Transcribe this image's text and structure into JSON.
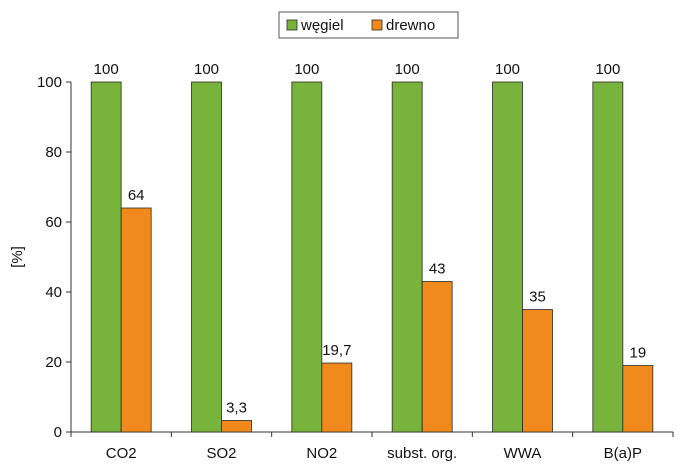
{
  "chart_data": {
    "type": "bar",
    "categories": [
      "CO2",
      "SO2",
      "NO2",
      "subst. org.",
      "WWA",
      "B(a)P"
    ],
    "series": [
      {
        "name": "węgiel",
        "color": "#78b33b",
        "values": [
          100,
          100,
          100,
          100,
          100,
          100
        ],
        "labels": [
          "100",
          "100",
          "100",
          "100",
          "100",
          "100"
        ]
      },
      {
        "name": "drewno",
        "color": "#f08a1c",
        "values": [
          64,
          3.3,
          19.7,
          43,
          35,
          19
        ],
        "labels": [
          "64",
          "3,3",
          "19,7",
          "43",
          "35",
          "19"
        ]
      }
    ],
    "ylabel": "[%]",
    "ylim": [
      0,
      100
    ],
    "yticks": [
      "0",
      "20",
      "40",
      "60",
      "80",
      "100"
    ],
    "legend_position": "top-center",
    "grid": false
  }
}
